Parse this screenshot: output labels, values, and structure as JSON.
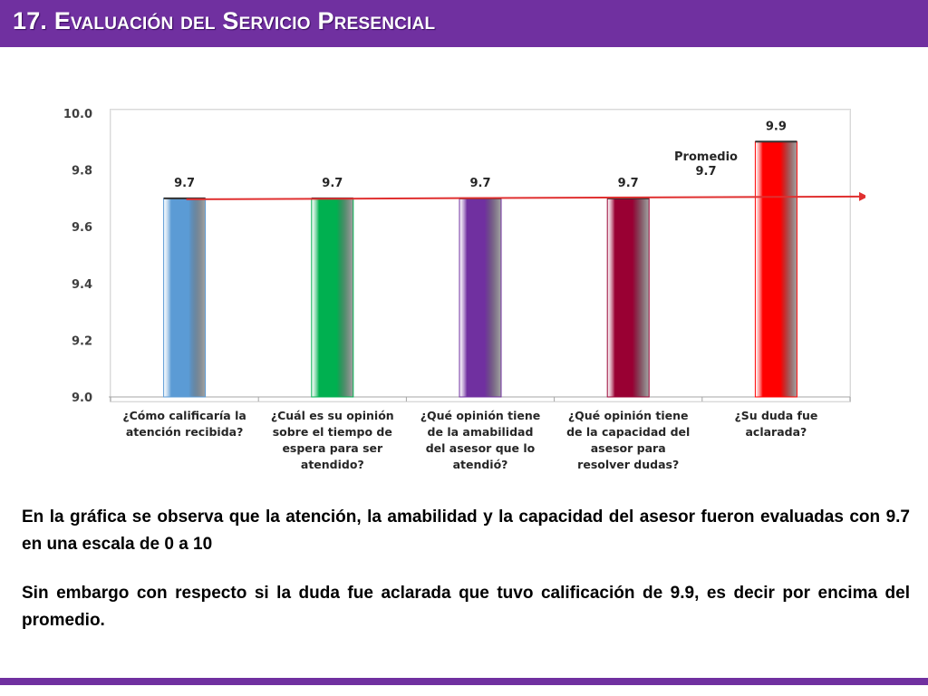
{
  "header": {
    "title": "17. Evaluación del Servicio Presencial"
  },
  "chart_data": {
    "type": "bar",
    "categories": [
      [
        "¿Cómo calificaría la",
        "atención recibida?"
      ],
      [
        "¿Cuál es su opinión",
        "sobre el tiempo de",
        "espera para ser",
        "atendido?"
      ],
      [
        "¿Qué opinión tiene",
        "de la amabilidad",
        "del asesor que lo",
        "atendió?"
      ],
      [
        "¿Qué opinión tiene",
        "de la capacidad del",
        "asesor para",
        "resolver dudas?"
      ],
      [
        "¿Su duda fue",
        "aclarada?"
      ]
    ],
    "values": [
      9.7,
      9.7,
      9.7,
      9.7,
      9.9
    ],
    "value_labels": [
      "9.7",
      "9.7",
      "9.7",
      "9.7",
      "9.9"
    ],
    "colors": [
      "#5B9BD5",
      "#00B050",
      "#7030A0",
      "#990033",
      "#FF0000"
    ],
    "ylim": [
      9.0,
      10.0
    ],
    "yticks": [
      "9.0",
      "9.2",
      "9.4",
      "9.6",
      "9.8",
      "10.0"
    ],
    "average": {
      "label": [
        "Promedio",
        "9.7"
      ],
      "value": 9.7,
      "color": "#E03030"
    }
  },
  "summary": {
    "paragraph1": "En la gráfica se observa que la atención, la amabilidad y la capacidad del asesor fueron evaluadas con 9.7 en una escala de 0 a 10",
    "paragraph2": "Sin embargo con respecto si la duda fue aclarada que tuvo calificación de 9.9, es decir por encima del promedio."
  }
}
